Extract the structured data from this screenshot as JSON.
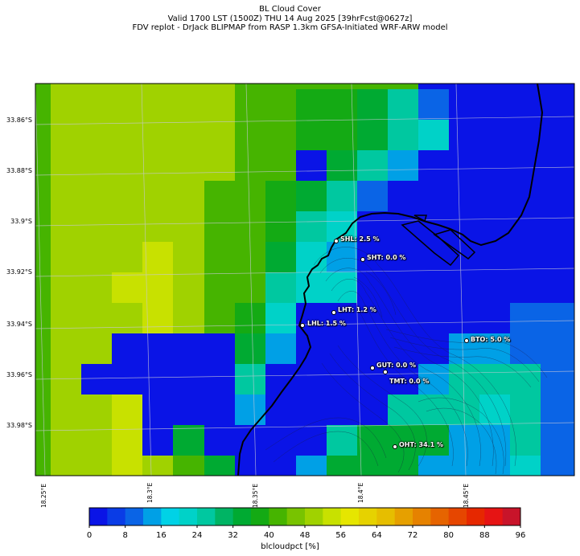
{
  "header": {
    "line1": "BL Cloud Cover",
    "line2": "Valid 1700 LST (1500Z) THU 14 Aug 2025 [39hrFcst@0627z]",
    "line3": "FDV replot - DrJack BLIPMAP from RASP 1.3km GFSA-Initiated WRF-ARW model"
  },
  "axes": {
    "lat_labels": [
      "33.86°S",
      "33.88°S",
      "33.9°S",
      "33.92°S",
      "33.94°S",
      "33.96°S",
      "33.98°S"
    ],
    "lon_labels": [
      "18.25°E",
      "18.3°E",
      "18.35°E",
      "18.4°E",
      "18.45°E"
    ]
  },
  "stations": [
    {
      "label": "SHL: 2.5 %"
    },
    {
      "label": "SHT: 0.0 %"
    },
    {
      "label": "LHT: 1.2 %"
    },
    {
      "label": "LHL: 1.5 %"
    },
    {
      "label": "BTO: 5.0 %"
    },
    {
      "label": "GUT: 0.0 %"
    },
    {
      "label": "TMT: 0.0 %"
    },
    {
      "label": "OHT: 34.1 %"
    }
  ],
  "colorbar": {
    "label": "blcloudpct [%]",
    "ticks": [
      "0",
      "8",
      "16",
      "24",
      "32",
      "40",
      "48",
      "56",
      "64",
      "72",
      "80",
      "88",
      "96"
    ],
    "colors": [
      "#0a14e6",
      "#0a3ce6",
      "#0a64e6",
      "#00a0e6",
      "#00d2e6",
      "#00d2c8",
      "#00c8a0",
      "#00b464",
      "#00aa32",
      "#14aa14",
      "#46b400",
      "#78c300",
      "#a0d200",
      "#c8e100",
      "#e6e600",
      "#e6d200",
      "#e6be00",
      "#e6a000",
      "#e68200",
      "#e66400",
      "#e64600",
      "#e62800",
      "#e61414",
      "#c8142a"
    ]
  }
}
